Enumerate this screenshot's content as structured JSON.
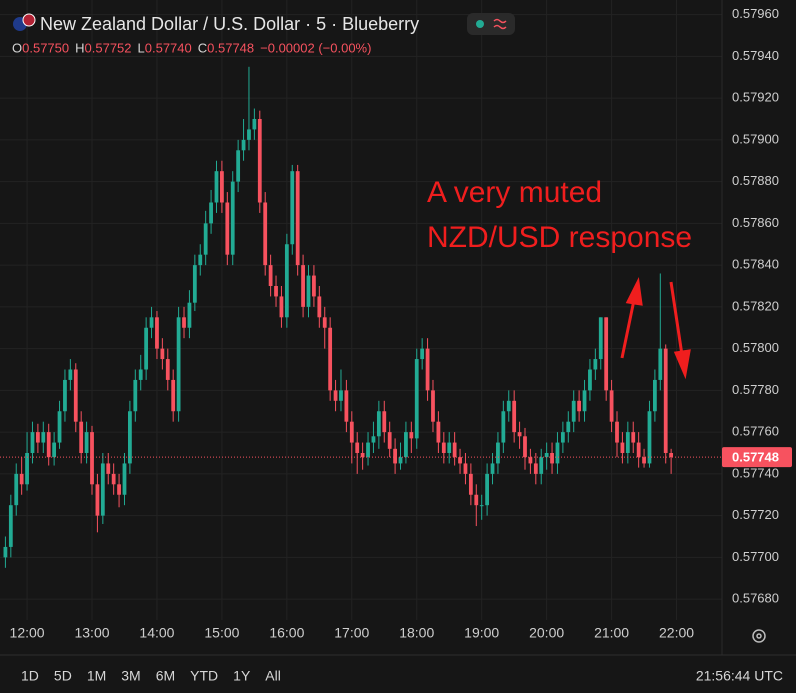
{
  "chart_data": {
    "type": "candlestick",
    "title": "New Zealand Dollar / U.S. Dollar · 5 · Blueberry",
    "ohlc_legend": [
      {
        "key": "O",
        "value": "0.57750"
      },
      {
        "key": "H",
        "value": "0.57752"
      },
      {
        "key": "L",
        "value": "0.57740"
      },
      {
        "key": "C",
        "value": "0.57748"
      }
    ],
    "change": "−0.00002 (−0.00%)",
    "annotation": [
      "A very muted",
      "NZD/USD response"
    ],
    "up_color": "#22ab94",
    "down_color": "#f7525f",
    "last_price": {
      "value": 0.57748,
      "label": "0.57748"
    },
    "x": [
      700,
      705,
      710,
      715,
      720,
      725,
      730,
      735,
      740,
      745,
      750,
      755,
      760,
      765,
      770,
      775,
      780,
      785,
      790,
      795,
      800,
      805,
      810,
      815,
      820,
      825,
      830,
      835,
      840,
      845,
      850,
      855,
      860,
      865,
      870,
      875,
      880,
      885,
      890,
      895,
      900,
      905,
      910,
      915,
      920,
      925,
      930,
      935,
      940,
      945,
      950,
      955,
      960,
      965,
      970,
      975,
      980,
      985,
      990,
      995,
      1000,
      1005,
      1010,
      1015,
      1020,
      1025,
      1030,
      1035,
      1040,
      1045,
      1050,
      1055,
      1060,
      1065,
      1070,
      1075,
      1080,
      1085,
      1090,
      1095,
      1100,
      1105,
      1110,
      1115,
      1120,
      1125,
      1130,
      1135,
      1140,
      1145,
      1150,
      1155,
      1160,
      1165,
      1170,
      1175,
      1180,
      1185,
      1190,
      1195,
      1200,
      1205,
      1210,
      1215,
      1220,
      1225,
      1230,
      1235,
      1240,
      1245,
      1250,
      1255,
      1260,
      1265,
      1270,
      1275,
      1280,
      1285,
      1290,
      1295,
      1300,
      1305,
      1310,
      1315
    ],
    "open": [
      0.577,
      0.57705,
      0.57725,
      0.5774,
      0.57735,
      0.5775,
      0.5776,
      0.57755,
      0.5776,
      0.57748,
      0.57755,
      0.5777,
      0.57785,
      0.5779,
      0.57765,
      0.5775,
      0.5776,
      0.57735,
      0.5772,
      0.57745,
      0.5774,
      0.57735,
      0.5773,
      0.57745,
      0.5777,
      0.57785,
      0.5779,
      0.5781,
      0.57815,
      0.578,
      0.57795,
      0.57785,
      0.5777,
      0.57815,
      0.5781,
      0.57822,
      0.5784,
      0.57845,
      0.5786,
      0.5787,
      0.57885,
      0.5787,
      0.57845,
      0.5788,
      0.57895,
      0.579,
      0.57905,
      0.5791,
      0.5787,
      0.5784,
      0.5783,
      0.57825,
      0.57815,
      0.5785,
      0.57885,
      0.5784,
      0.5782,
      0.57835,
      0.57825,
      0.57815,
      0.5781,
      0.5778,
      0.57775,
      0.5778,
      0.57765,
      0.57755,
      0.5775,
      0.57748,
      0.57755,
      0.57758,
      0.5777,
      0.5776,
      0.57752,
      0.57745,
      0.57748,
      0.5776,
      0.57757,
      0.57795,
      0.578,
      0.5778,
      0.57765,
      0.57755,
      0.5775,
      0.57755,
      0.57748,
      0.57745,
      0.5774,
      0.5773,
      0.57725,
      0.57725,
      0.5774,
      0.57745,
      0.57755,
      0.5777,
      0.57775,
      0.5776,
      0.57758,
      0.57748,
      0.57745,
      0.5774,
      0.57748,
      0.5775,
      0.57745,
      0.57755,
      0.5776,
      0.57765,
      0.57775,
      0.5777,
      0.5778,
      0.5779,
      0.57795,
      0.57815,
      0.5778,
      0.57765,
      0.57755,
      0.5775,
      0.5776,
      0.57755,
      0.57748,
      0.57745,
      0.5777,
      0.57785,
      0.578,
      0.5775
    ],
    "high": [
      0.5771,
      0.5773,
      0.57745,
      0.57748,
      0.5776,
      0.57765,
      0.57764,
      0.57765,
      0.57764,
      0.5776,
      0.57775,
      0.5779,
      0.57795,
      0.57793,
      0.5777,
      0.57765,
      0.57763,
      0.5774,
      0.5775,
      0.5775,
      0.57745,
      0.5774,
      0.5775,
      0.57775,
      0.5779,
      0.57797,
      0.57815,
      0.5782,
      0.57818,
      0.57805,
      0.578,
      0.5779,
      0.5782,
      0.5782,
      0.57828,
      0.57845,
      0.5785,
      0.57866,
      0.57876,
      0.5789,
      0.5789,
      0.57875,
      0.57885,
      0.579,
      0.5791,
      0.57935,
      0.57915,
      0.57914,
      0.57875,
      0.57845,
      0.57835,
      0.5783,
      0.57855,
      0.57888,
      0.57888,
      0.57845,
      0.5784,
      0.5784,
      0.5783,
      0.5782,
      0.57815,
      0.57785,
      0.5779,
      0.57785,
      0.5777,
      0.5776,
      0.57755,
      0.5776,
      0.57765,
      0.57775,
      0.57775,
      0.57765,
      0.57757,
      0.57755,
      0.57765,
      0.57765,
      0.578,
      0.57805,
      0.57805,
      0.57785,
      0.5777,
      0.5776,
      0.5776,
      0.5776,
      0.57752,
      0.5775,
      0.57745,
      0.57735,
      0.5773,
      0.57745,
      0.5775,
      0.5776,
      0.57775,
      0.5778,
      0.5778,
      0.57765,
      0.57762,
      0.57752,
      0.5775,
      0.57752,
      0.57755,
      0.57755,
      0.5776,
      0.57765,
      0.5777,
      0.5778,
      0.5778,
      0.57785,
      0.57795,
      0.578,
      0.57815,
      0.57815,
      0.57785,
      0.5777,
      0.5776,
      0.57765,
      0.57765,
      0.5776,
      0.57752,
      0.57775,
      0.5779,
      0.57836,
      0.57802,
      0.57752
    ],
    "low": [
      0.57695,
      0.577,
      0.5772,
      0.5773,
      0.57732,
      0.57745,
      0.5775,
      0.5775,
      0.57744,
      0.57744,
      0.57752,
      0.57765,
      0.5778,
      0.5776,
      0.57745,
      0.57745,
      0.5773,
      0.57712,
      0.57716,
      0.57735,
      0.5773,
      0.57724,
      0.57725,
      0.5774,
      0.57765,
      0.5778,
      0.57785,
      0.57805,
      0.57795,
      0.5779,
      0.5778,
      0.57765,
      0.57765,
      0.57805,
      0.57805,
      0.57818,
      0.57835,
      0.5784,
      0.57855,
      0.57865,
      0.57865,
      0.5784,
      0.5784,
      0.57875,
      0.5789,
      0.57895,
      0.579,
      0.57865,
      0.57835,
      0.57825,
      0.5782,
      0.5781,
      0.5781,
      0.57845,
      0.57835,
      0.57815,
      0.57815,
      0.5782,
      0.5781,
      0.578,
      0.57775,
      0.5777,
      0.5777,
      0.5776,
      0.57745,
      0.5774,
      0.57742,
      0.57744,
      0.5775,
      0.57752,
      0.57755,
      0.57748,
      0.5774,
      0.57742,
      0.57745,
      0.5775,
      0.57752,
      0.5779,
      0.57775,
      0.5776,
      0.5775,
      0.57745,
      0.57745,
      0.57744,
      0.5774,
      0.57735,
      0.57725,
      0.57715,
      0.57718,
      0.5772,
      0.57735,
      0.5774,
      0.5775,
      0.57765,
      0.57755,
      0.57752,
      0.57742,
      0.5774,
      0.57735,
      0.57735,
      0.57742,
      0.5774,
      0.5774,
      0.5775,
      0.57755,
      0.5776,
      0.57765,
      0.57765,
      0.57775,
      0.57785,
      0.5779,
      0.57775,
      0.5776,
      0.57748,
      0.57745,
      0.57745,
      0.5775,
      0.57743,
      0.57743,
      0.57743,
      0.57765,
      0.5778,
      0.57745,
      0.5774
    ],
    "close": [
      0.57705,
      0.57725,
      0.5774,
      0.57735,
      0.5775,
      0.5776,
      0.57755,
      0.5776,
      0.57748,
      0.57755,
      0.5777,
      0.57785,
      0.5779,
      0.57765,
      0.5775,
      0.5776,
      0.57735,
      0.5772,
      0.57745,
      0.5774,
      0.57735,
      0.5773,
      0.57745,
      0.5777,
      0.57785,
      0.5779,
      0.5781,
      0.57815,
      0.578,
      0.57795,
      0.57785,
      0.5777,
      0.57815,
      0.5781,
      0.57822,
      0.5784,
      0.57845,
      0.5786,
      0.5787,
      0.57885,
      0.5787,
      0.57845,
      0.5788,
      0.57895,
      0.579,
      0.57905,
      0.5791,
      0.5787,
      0.5784,
      0.5783,
      0.57825,
      0.57815,
      0.5785,
      0.57885,
      0.5784,
      0.5782,
      0.57835,
      0.57825,
      0.57815,
      0.5781,
      0.5778,
      0.57775,
      0.5778,
      0.57765,
      0.57755,
      0.5775,
      0.57748,
      0.57755,
      0.57758,
      0.5777,
      0.5776,
      0.57752,
      0.57745,
      0.57748,
      0.5776,
      0.57757,
      0.57795,
      0.578,
      0.5778,
      0.57765,
      0.57755,
      0.5775,
      0.57755,
      0.57748,
      0.57745,
      0.5774,
      0.5773,
      0.57725,
      0.57725,
      0.5774,
      0.57745,
      0.57755,
      0.5777,
      0.57775,
      0.5776,
      0.57758,
      0.57748,
      0.57745,
      0.5774,
      0.57748,
      0.5775,
      0.57745,
      0.57755,
      0.5776,
      0.57765,
      0.57775,
      0.5777,
      0.5778,
      0.5779,
      0.57795,
      0.57815,
      0.5778,
      0.57765,
      0.57755,
      0.5775,
      0.5776,
      0.57755,
      0.57748,
      0.57745,
      0.5777,
      0.57785,
      0.578,
      0.5775,
      0.57748
    ],
    "xlim": [
      695,
      1362
    ],
    "xticks": [
      {
        "value": 720,
        "label": "12:00"
      },
      {
        "value": 780,
        "label": "13:00"
      },
      {
        "value": 840,
        "label": "14:00"
      },
      {
        "value": 900,
        "label": "15:00"
      },
      {
        "value": 960,
        "label": "16:00"
      },
      {
        "value": 1020,
        "label": "17:00"
      },
      {
        "value": 1080,
        "label": "18:00"
      },
      {
        "value": 1140,
        "label": "19:00"
      },
      {
        "value": 1200,
        "label": "20:00"
      },
      {
        "value": 1260,
        "label": "21:00"
      },
      {
        "value": 1320,
        "label": "22:00"
      }
    ],
    "ylim": [
      0.5767,
      0.57967
    ],
    "yticks": [
      {
        "value": 0.5768,
        "label": "0.57680"
      },
      {
        "value": 0.577,
        "label": "0.57700"
      },
      {
        "value": 0.5772,
        "label": "0.57720"
      },
      {
        "value": 0.5774,
        "label": "0.57740"
      },
      {
        "value": 0.5776,
        "label": "0.57760"
      },
      {
        "value": 0.5778,
        "label": "0.57780"
      },
      {
        "value": 0.578,
        "label": "0.57800"
      },
      {
        "value": 0.5782,
        "label": "0.57820"
      },
      {
        "value": 0.5784,
        "label": "0.57840"
      },
      {
        "value": 0.5786,
        "label": "0.57860"
      },
      {
        "value": 0.5788,
        "label": "0.57880"
      },
      {
        "value": 0.579,
        "label": "0.57900"
      },
      {
        "value": 0.5792,
        "label": "0.57920"
      },
      {
        "value": 0.5794,
        "label": "0.57940"
      },
      {
        "value": 0.5796,
        "label": "0.57960"
      }
    ],
    "grid": true
  },
  "toolbar": {
    "ranges": [
      "1D",
      "5D",
      "1M",
      "3M",
      "6M",
      "YTD",
      "1Y",
      "All"
    ],
    "clock": "21:56:44 UTC"
  }
}
